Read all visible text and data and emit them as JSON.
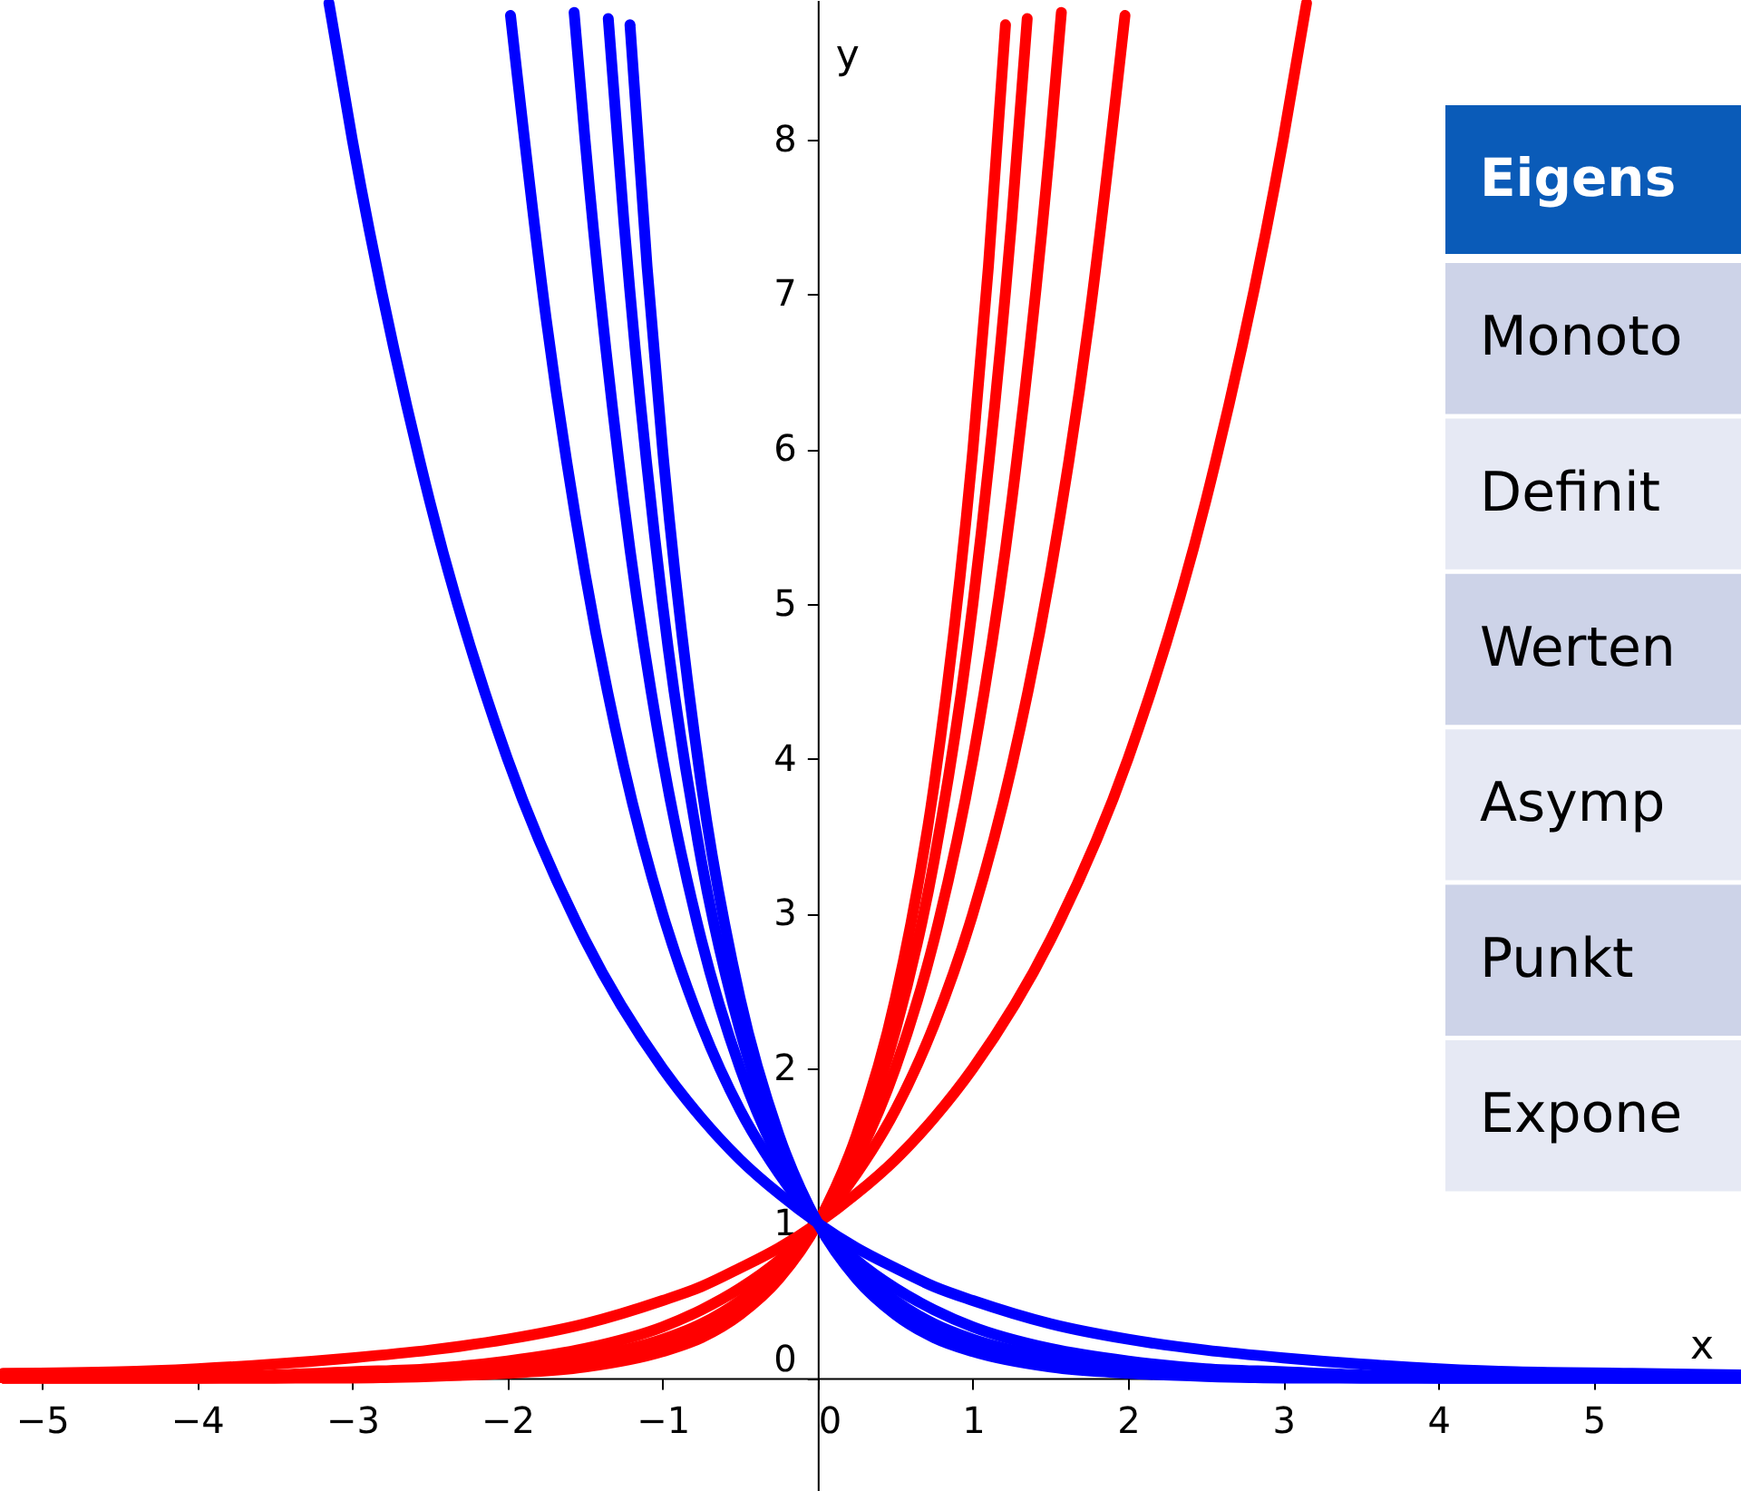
{
  "chart_data": {
    "type": "line",
    "xlabel": "x",
    "ylabel": "y",
    "xlim": [
      -5.27,
      5.95
    ],
    "ylim": [
      -0.73,
      8.9
    ],
    "xticks": [
      -5,
      -4,
      -3,
      -2,
      -1,
      0,
      1,
      2,
      3,
      4,
      5
    ],
    "yticks": [
      0,
      1,
      2,
      3,
      4,
      5,
      6,
      7,
      8
    ],
    "grid": false,
    "marker": "none",
    "line_style": "solid",
    "annotations": [
      "Eigens",
      "Monoto",
      "Definit",
      "Werten",
      "Asymp",
      "Punkt",
      "Expone"
    ],
    "series": [
      {
        "color": "#ff0000",
        "x": [
          -5.25,
          -4.5,
          -4,
          -3.5,
          -3,
          -2.5,
          -2,
          -1.5,
          -1,
          -0.75,
          -0.5,
          -0.25,
          0,
          0.25,
          0.5,
          0.75,
          1,
          1.5,
          2,
          2.5,
          3,
          3.15
        ],
        "values": [
          0.03,
          0.04,
          0.06,
          0.09,
          0.13,
          0.18,
          0.25,
          0.35,
          0.5,
          0.59,
          0.71,
          0.84,
          1,
          1.19,
          1.41,
          1.68,
          2,
          2.83,
          4,
          5.66,
          8,
          8.88
        ]
      },
      {
        "color": "#ff0000",
        "x": [
          -5.25,
          -4.5,
          -4,
          -3.5,
          -3,
          -2.5,
          -2,
          -1.5,
          -1,
          -0.75,
          -0.5,
          -0.25,
          0,
          0.25,
          0.5,
          0.75,
          1,
          1.25,
          1.5,
          1.75,
          1.98
        ],
        "values": [
          0,
          0.01,
          0.01,
          0.02,
          0.04,
          0.06,
          0.11,
          0.19,
          0.33,
          0.44,
          0.58,
          0.76,
          1,
          1.32,
          1.73,
          2.28,
          3,
          3.95,
          5.2,
          6.84,
          8.8
        ]
      },
      {
        "color": "#ff0000",
        "x": [
          -5.25,
          -4.5,
          -4,
          -3.5,
          -3,
          -2.5,
          -2,
          -1.5,
          -1,
          -0.75,
          -0.5,
          -0.25,
          0,
          0.25,
          0.5,
          0.75,
          1,
          1.25,
          1.5,
          1.57
        ],
        "values": [
          0,
          0,
          0,
          0.01,
          0.02,
          0.03,
          0.06,
          0.13,
          0.25,
          0.35,
          0.5,
          0.71,
          1,
          1.41,
          2,
          2.83,
          4,
          5.66,
          8,
          8.82
        ]
      },
      {
        "color": "#ff0000",
        "x": [
          -5.25,
          -4.5,
          -4,
          -3.5,
          -3,
          -2.5,
          -2,
          -1.5,
          -1,
          -0.75,
          -0.5,
          -0.25,
          0,
          0.25,
          0.5,
          0.75,
          1,
          1.25,
          1.35
        ],
        "values": [
          0,
          0,
          0,
          0,
          0.01,
          0.02,
          0.04,
          0.09,
          0.2,
          0.3,
          0.45,
          0.67,
          1,
          1.5,
          2.24,
          3.34,
          5,
          7.48,
          8.78
        ]
      },
      {
        "color": "#ff0000",
        "x": [
          -5.25,
          -4.5,
          -4,
          -3.5,
          -3,
          -2.5,
          -2,
          -1.5,
          -1,
          -0.75,
          -0.5,
          -0.25,
          0,
          0.25,
          0.5,
          0.75,
          1,
          1.1,
          1.21
        ],
        "values": [
          0,
          0,
          0,
          0,
          0,
          0.01,
          0.03,
          0.07,
          0.17,
          0.26,
          0.41,
          0.64,
          1,
          1.57,
          2.45,
          3.83,
          6,
          7.18,
          8.74
        ]
      },
      {
        "color": "#0000ff",
        "x": [
          -3.15,
          -3,
          -2.5,
          -2,
          -1.5,
          -1,
          -0.75,
          -0.5,
          -0.25,
          0,
          0.25,
          0.5,
          0.75,
          1,
          1.5,
          2,
          2.5,
          3,
          3.5,
          4,
          4.5,
          5.25,
          5.95
        ],
        "values": [
          8.88,
          8,
          5.66,
          4,
          2.83,
          2,
          1.68,
          1.41,
          1.19,
          1,
          0.84,
          0.71,
          0.59,
          0.5,
          0.35,
          0.25,
          0.18,
          0.13,
          0.09,
          0.06,
          0.04,
          0.03,
          0.02
        ]
      },
      {
        "color": "#0000ff",
        "x": [
          -1.98,
          -1.75,
          -1.5,
          -1.25,
          -1,
          -0.75,
          -0.5,
          -0.25,
          0,
          0.25,
          0.5,
          0.75,
          1,
          1.5,
          2,
          2.5,
          3,
          3.5,
          4,
          4.5,
          5.25,
          5.95
        ],
        "values": [
          8.8,
          6.84,
          5.2,
          3.95,
          3,
          2.28,
          1.73,
          1.32,
          1,
          0.76,
          0.58,
          0.44,
          0.33,
          0.19,
          0.11,
          0.06,
          0.04,
          0.02,
          0.01,
          0.01,
          0,
          0
        ]
      },
      {
        "color": "#0000ff",
        "x": [
          -1.57,
          -1.5,
          -1.25,
          -1,
          -0.75,
          -0.5,
          -0.25,
          0,
          0.25,
          0.5,
          0.75,
          1,
          1.5,
          2,
          2.5,
          3,
          3.5,
          4,
          4.5,
          5.25,
          5.95
        ],
        "values": [
          8.82,
          8,
          5.66,
          4,
          2.83,
          2,
          1.41,
          1,
          0.71,
          0.5,
          0.35,
          0.25,
          0.13,
          0.06,
          0.03,
          0.02,
          0.01,
          0,
          0,
          0,
          0
        ]
      },
      {
        "color": "#0000ff",
        "x": [
          -1.35,
          -1.25,
          -1,
          -0.75,
          -0.5,
          -0.25,
          0,
          0.25,
          0.5,
          0.75,
          1,
          1.5,
          2,
          2.5,
          3,
          3.5,
          4,
          4.5,
          5.25,
          5.95
        ],
        "values": [
          8.78,
          7.48,
          5,
          3.34,
          2.24,
          1.5,
          1,
          0.67,
          0.45,
          0.3,
          0.2,
          0.09,
          0.04,
          0.02,
          0.01,
          0,
          0,
          0,
          0,
          0
        ]
      },
      {
        "color": "#0000ff",
        "x": [
          -1.21,
          -1.1,
          -1,
          -0.75,
          -0.5,
          -0.25,
          0,
          0.25,
          0.5,
          0.75,
          1,
          1.5,
          2,
          2.5,
          3,
          3.5,
          4,
          4.5,
          5.25,
          5.95
        ],
        "values": [
          8.74,
          7.18,
          6,
          3.83,
          2.45,
          1.57,
          1,
          0.64,
          0.41,
          0.26,
          0.17,
          0.07,
          0.03,
          0.01,
          0,
          0,
          0,
          0,
          0,
          0
        ]
      }
    ]
  }
}
